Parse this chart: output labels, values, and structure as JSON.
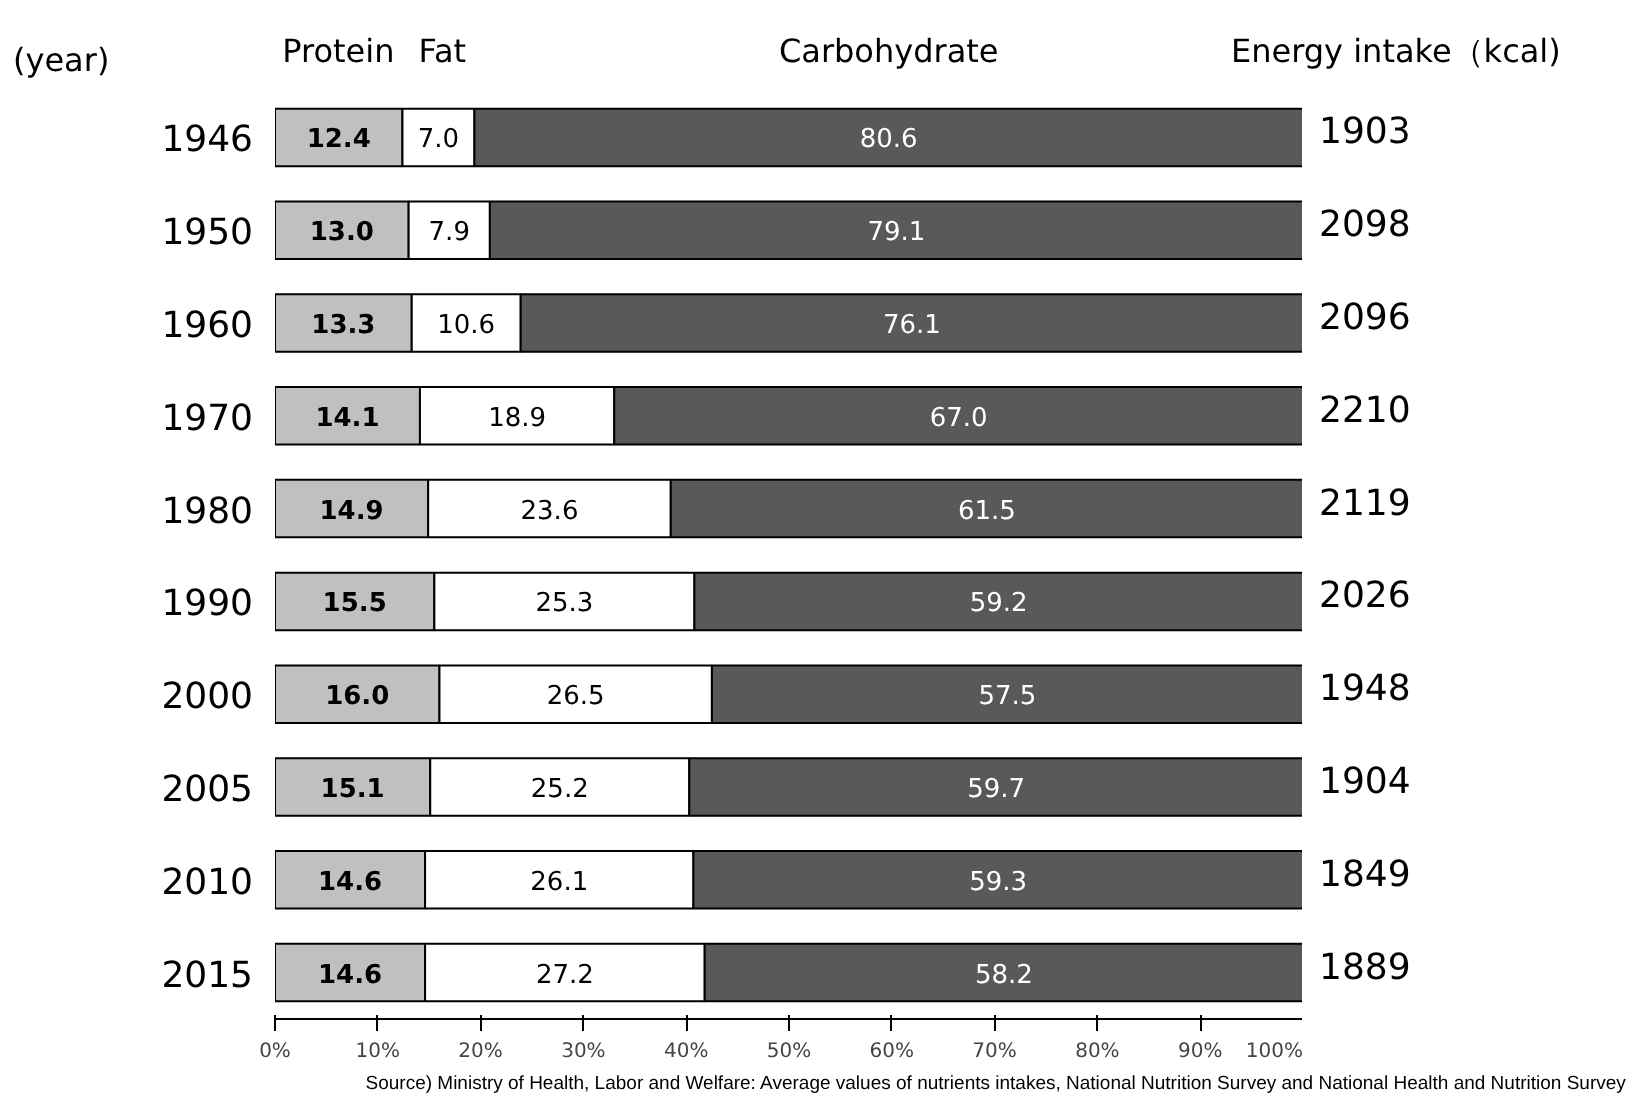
{
  "chart_data": {
    "type": "bar",
    "orientation": "horizontal",
    "stacked": true,
    "ylabel": "(year)",
    "categories": [
      "1946",
      "1950",
      "1960",
      "1970",
      "1980",
      "1990",
      "2000",
      "2005",
      "2010",
      "2015"
    ],
    "series": [
      {
        "name": "Protein",
        "color": "#c0c0c0",
        "values": [
          12.4,
          13.0,
          13.3,
          14.1,
          14.9,
          15.5,
          16.0,
          15.1,
          14.6,
          14.6
        ],
        "value_labels": [
          "12.4",
          "13.0",
          "13.3",
          "14.1",
          "14.9",
          "15.5",
          "16.0",
          "15.1",
          "14.6",
          "14.6"
        ]
      },
      {
        "name": "Fat",
        "color": "#ffffff",
        "values": [
          7.0,
          7.9,
          10.6,
          18.9,
          23.6,
          25.3,
          26.5,
          25.2,
          26.1,
          27.2
        ],
        "value_labels": [
          "7.0",
          "7.9",
          "10.6",
          "18.9",
          "23.6",
          "25.3",
          "26.5",
          "25.2",
          "26.1",
          "27.2"
        ]
      },
      {
        "name": "Carbohydrate",
        "color": "#595959",
        "values": [
          80.6,
          79.1,
          76.1,
          67.0,
          61.5,
          59.2,
          57.5,
          59.7,
          59.3,
          58.2
        ],
        "value_labels": [
          "80.6",
          "79.1",
          "76.1",
          "67.0",
          "61.5",
          "59.2",
          "57.5",
          "59.7",
          "59.3",
          "58.2"
        ]
      }
    ],
    "xlim": [
      0,
      100
    ],
    "xticks": [
      {
        "value": 0,
        "label": "0%"
      },
      {
        "value": 10,
        "label": "10%"
      },
      {
        "value": 20,
        "label": "20%"
      },
      {
        "value": 30,
        "label": "30%"
      },
      {
        "value": 40,
        "label": "40%"
      },
      {
        "value": 50,
        "label": "50%"
      },
      {
        "value": 60,
        "label": "60%"
      },
      {
        "value": 70,
        "label": "70%"
      },
      {
        "value": 80,
        "label": "80%"
      },
      {
        "value": 90,
        "label": "90%"
      },
      {
        "value": 100,
        "label": "100%"
      }
    ],
    "annotations": [
      "Energy intake（kcal)",
      "1903",
      "2098",
      "2096",
      "2210",
      "2119",
      "2026",
      "1948",
      "1904",
      "1849",
      "1889",
      "Source) Ministry of Health, Labor and Welfare: Average values of nutrients intakes, National Nutrition Survey and National Health and Nutrition Survey"
    ]
  }
}
